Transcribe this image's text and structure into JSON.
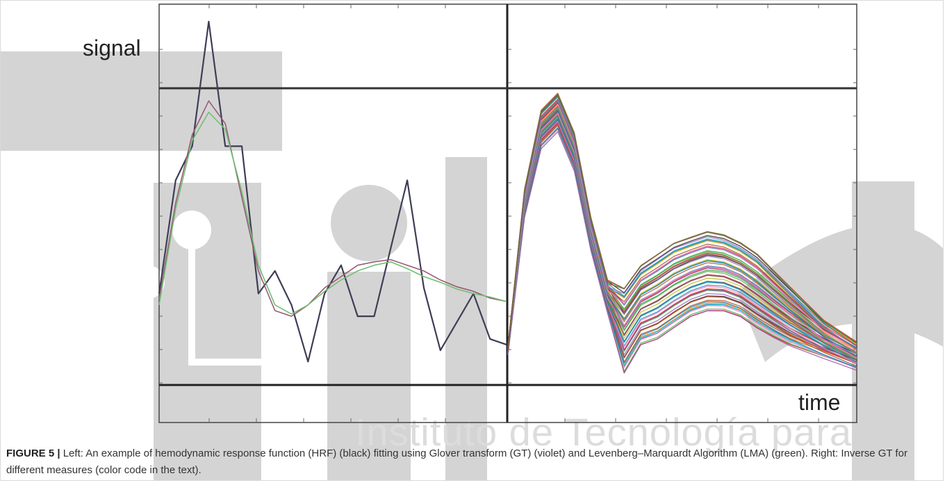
{
  "figure": {
    "number_label": "FIGURE 5 |",
    "caption": "Left: An example of hemodynamic response function (HRF) (black) fitting using Glover transform (GT) (violet) and Levenberg–Marquardt Algorithm (LMA) (green). Right: Inverse GT for different measures (color code in the text).",
    "watermark_text": "Instituto de Tecnología para"
  },
  "chart_data": [
    {
      "type": "line",
      "panel": "left",
      "ylabel": "signal",
      "xlabel": "",
      "grid": false,
      "xlim": [
        0,
        21
      ],
      "ylim": [
        -1.2,
        2.0
      ],
      "series": [
        {
          "color": "#3d3d55",
          "x": [
            0,
            1,
            2,
            3,
            4,
            5,
            6,
            7,
            8,
            9,
            10,
            11,
            12,
            13,
            14,
            15,
            16,
            17,
            18,
            19,
            20,
            21
          ],
          "y": [
            -0.4,
            0.6,
            0.9,
            2.0,
            0.9,
            0.9,
            -0.4,
            -0.2,
            -0.5,
            -1.0,
            -0.4,
            -0.15,
            -0.6,
            -0.6,
            0.0,
            0.6,
            -0.35,
            -0.9,
            -0.65,
            -0.4,
            -0.8,
            -0.85
          ]
        },
        {
          "color": "#9a5a78",
          "x": [
            0,
            1,
            2,
            3,
            4,
            5,
            6,
            7,
            8,
            9,
            10,
            11,
            12,
            13,
            14,
            15,
            16,
            17,
            18,
            19,
            20,
            21
          ],
          "y": [
            -0.45,
            0.4,
            1.0,
            1.3,
            1.1,
            0.45,
            -0.2,
            -0.55,
            -0.6,
            -0.5,
            -0.35,
            -0.25,
            -0.15,
            -0.12,
            -0.1,
            -0.15,
            -0.2,
            -0.28,
            -0.34,
            -0.38,
            -0.44,
            -0.47
          ]
        },
        {
          "color": "#6fbf6f",
          "x": [
            0,
            1,
            2,
            3,
            4,
            5,
            6,
            7,
            8,
            9,
            10,
            11,
            12,
            13,
            14,
            15,
            16,
            17,
            18,
            19,
            20,
            21
          ],
          "y": [
            -0.5,
            0.35,
            0.95,
            1.2,
            1.05,
            0.5,
            -0.15,
            -0.5,
            -0.58,
            -0.5,
            -0.38,
            -0.28,
            -0.2,
            -0.15,
            -0.12,
            -0.18,
            -0.25,
            -0.3,
            -0.36,
            -0.4,
            -0.43,
            -0.47
          ]
        }
      ]
    },
    {
      "type": "line",
      "panel": "right",
      "xlabel": "time",
      "ylabel": "",
      "grid": false,
      "xlim": [
        0,
        21
      ],
      "ylim": [
        -1.2,
        2.0
      ],
      "note_series": "many overlapping multicolored curves, each an inverse GT for a different measure",
      "series_profile": {
        "x": [
          0,
          1,
          2,
          3,
          4,
          5,
          6,
          7,
          8,
          9,
          10,
          11,
          12,
          13,
          14,
          15,
          16,
          17,
          18,
          19,
          20,
          21
        ],
        "y_low": [
          -0.9,
          0.3,
          0.9,
          1.05,
          0.7,
          0.0,
          -0.55,
          -1.1,
          -0.85,
          -0.8,
          -0.7,
          -0.6,
          -0.55,
          -0.55,
          -0.6,
          -0.7,
          -0.78,
          -0.85,
          -0.9,
          -0.95,
          -1.0,
          -1.05
        ],
        "y_high": [
          -0.9,
          0.5,
          1.2,
          1.35,
          1.0,
          0.25,
          -0.3,
          -0.35,
          -0.15,
          -0.05,
          0.05,
          0.1,
          0.15,
          0.12,
          0.05,
          -0.05,
          -0.2,
          -0.35,
          -0.5,
          -0.65,
          -0.75,
          -0.85
        ]
      },
      "curve_colors": [
        "#e41a1c",
        "#377eb8",
        "#4daf4a",
        "#984ea3",
        "#ff7f00",
        "#a65628",
        "#f781bf",
        "#17becf",
        "#222222",
        "#bcbd22",
        "#1f77b4",
        "#d62728",
        "#2ca02c",
        "#9467bd",
        "#8c564b"
      ]
    }
  ]
}
